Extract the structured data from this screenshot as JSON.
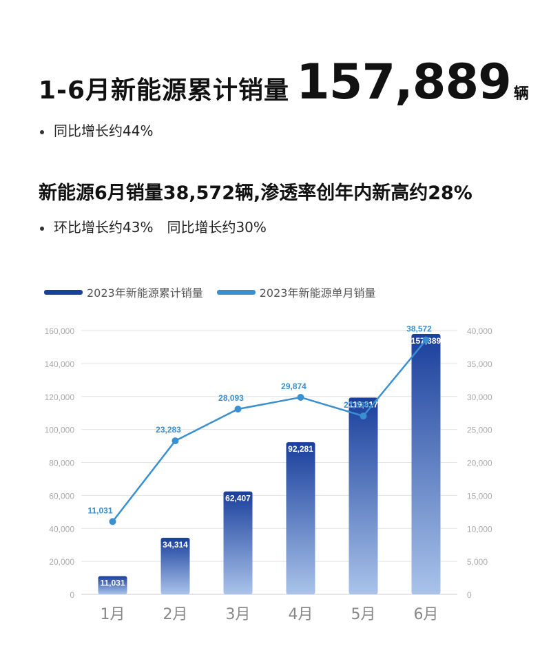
{
  "header": {
    "title_label": "1-6月新能源累计销量",
    "title_value": "157,889",
    "title_unit": "辆",
    "bullet1": "同比增长约44%",
    "subtitle": "新能源6月销量38,572辆,渗透率创年内新高约28%",
    "bullet2a": "环比增长约43%",
    "bullet2b": "同比增长约30%"
  },
  "colors": {
    "bar_top": "#1a3f9c",
    "bar_bottom": "#a9c3ea",
    "line": "#3a8fd0",
    "grid": "#e3e3e3",
    "axis_text": "#aaaaaa",
    "month_text": "#888888"
  },
  "chart_data": {
    "type": "bar",
    "categories": [
      "1月",
      "2月",
      "3月",
      "4月",
      "5月",
      "6月"
    ],
    "left_axis": {
      "ticks": [
        "0",
        "20,000",
        "40,000",
        "60,000",
        "80,000",
        "100,000",
        "120,000",
        "140,000",
        "160,000"
      ],
      "ylim": [
        0,
        160000
      ]
    },
    "right_axis": {
      "ticks": [
        "0",
        "5,000",
        "10,000",
        "15,000",
        "20,000",
        "25,000",
        "30,000",
        "35,000",
        "40,000"
      ],
      "ylim": [
        0,
        40000
      ]
    },
    "series": [
      {
        "name": "2023年新能源累计销量",
        "type": "bar",
        "axis": "left",
        "values": [
          11031,
          34314,
          62407,
          92281,
          119317,
          157889
        ],
        "labels": [
          "11,031",
          "34,314",
          "62,407",
          "92,281",
          "119,317",
          "157,889"
        ]
      },
      {
        "name": "2023年新能源单月销量",
        "type": "line",
        "axis": "right",
        "values": [
          11031,
          23283,
          28093,
          29874,
          27036,
          38572
        ],
        "labels": [
          "11,031",
          "23,283",
          "28,093",
          "29,874",
          "27,036",
          "38,572"
        ]
      }
    ],
    "legend": "top-left",
    "grid": true
  }
}
